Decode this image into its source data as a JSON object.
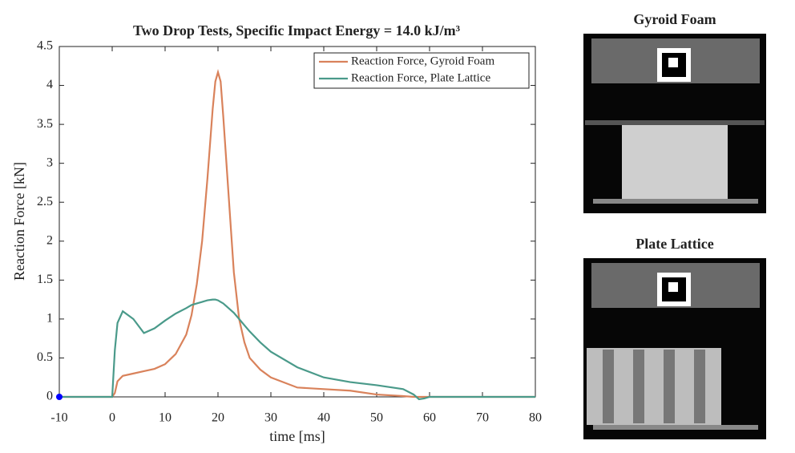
{
  "chart_data": {
    "type": "line",
    "title": "Two Drop Tests, Specific Impact Energy = 14.0 kJ/m³",
    "xlabel": "time [ms]",
    "ylabel": "Reaction Force [kN]",
    "x": [
      -10,
      0,
      0.5,
      1,
      2,
      4,
      6,
      8,
      10,
      12,
      14,
      15,
      16,
      17,
      18,
      19,
      19.5,
      20,
      20.5,
      21,
      22,
      23,
      24,
      25,
      26,
      28,
      30,
      35,
      40,
      45,
      50,
      55,
      57,
      58,
      59,
      60,
      65,
      70,
      80
    ],
    "series": [
      {
        "name": "Reaction Force, Gyroid Foam",
        "color": "#d9825b",
        "values": [
          0,
          0,
          0.05,
          0.2,
          0.27,
          0.3,
          0.33,
          0.36,
          0.42,
          0.55,
          0.8,
          1.05,
          1.45,
          2.0,
          2.8,
          3.7,
          4.05,
          4.17,
          4.05,
          3.6,
          2.6,
          1.6,
          1.0,
          0.7,
          0.5,
          0.35,
          0.25,
          0.12,
          0.1,
          0.08,
          0.03,
          0.01,
          0,
          0,
          0,
          0,
          0,
          0,
          0
        ]
      },
      {
        "name": "Reaction Force, Plate Lattice",
        "color": "#4a9a8a",
        "values": [
          0,
          0,
          0.6,
          0.95,
          1.1,
          1.0,
          0.82,
          0.88,
          0.98,
          1.07,
          1.14,
          1.18,
          1.2,
          1.22,
          1.24,
          1.25,
          1.25,
          1.24,
          1.22,
          1.2,
          1.14,
          1.08,
          1.0,
          0.92,
          0.84,
          0.7,
          0.58,
          0.38,
          0.25,
          0.19,
          0.15,
          0.1,
          0.03,
          -0.03,
          -0.02,
          0,
          0,
          0,
          0
        ]
      }
    ],
    "highlight": {
      "x": -10,
      "y": 0,
      "color": "#0000ff"
    },
    "xlim": [
      -10,
      80
    ],
    "xticks": [
      -10,
      0,
      10,
      20,
      30,
      40,
      50,
      60,
      70,
      80
    ],
    "ylim": [
      0,
      4.5
    ],
    "yticks": [
      0,
      0.5,
      1,
      1.5,
      2,
      2.5,
      3,
      3.5,
      4,
      4.5
    ],
    "legend": "upper right"
  },
  "panels": [
    {
      "title": "Gyroid Foam",
      "color": "#d9825b"
    },
    {
      "title": "Plate Lattice",
      "color": "#4a9a8a"
    }
  ]
}
